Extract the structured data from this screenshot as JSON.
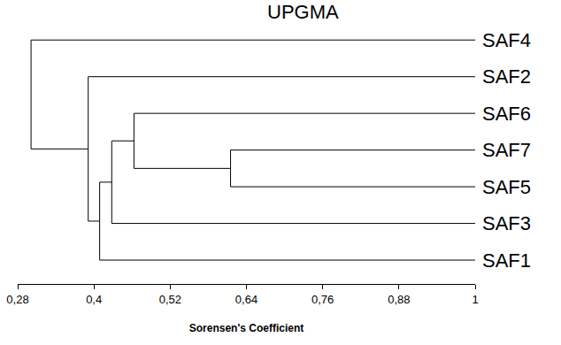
{
  "chart_data": {
    "type": "dendrogram",
    "title": "UPGMA",
    "x_label": "Sorensen's Coefficient",
    "xlim": [
      0.28,
      1
    ],
    "xticks": [
      {
        "value": 0.28,
        "label": "0,28"
      },
      {
        "value": 0.4,
        "label": "0,4"
      },
      {
        "value": 0.52,
        "label": "0,52"
      },
      {
        "value": 0.64,
        "label": "0,64"
      },
      {
        "value": 0.76,
        "label": "0,76"
      },
      {
        "value": 0.88,
        "label": "0,88"
      },
      1
    ],
    "color": "#000000",
    "grid": false,
    "tree": {
      "value": 0.301,
      "children": [
        {
          "leaf": "SAF4"
        },
        {
          "value": 0.391,
          "children": [
            {
              "leaf": "SAF2"
            },
            {
              "value": 0.409,
              "children": [
                {
                  "value": 0.428,
                  "children": [
                    {
                      "value": 0.463,
                      "children": [
                        {
                          "leaf": "SAF6"
                        },
                        {
                          "value": 0.615,
                          "children": [
                            {
                              "leaf": "SAF7"
                            },
                            {
                              "leaf": "SAF5"
                            }
                          ]
                        }
                      ]
                    },
                    {
                      "leaf": "SAF3"
                    }
                  ]
                },
                {
                  "leaf": "SAF1"
                }
              ]
            }
          ]
        }
      ]
    }
  }
}
